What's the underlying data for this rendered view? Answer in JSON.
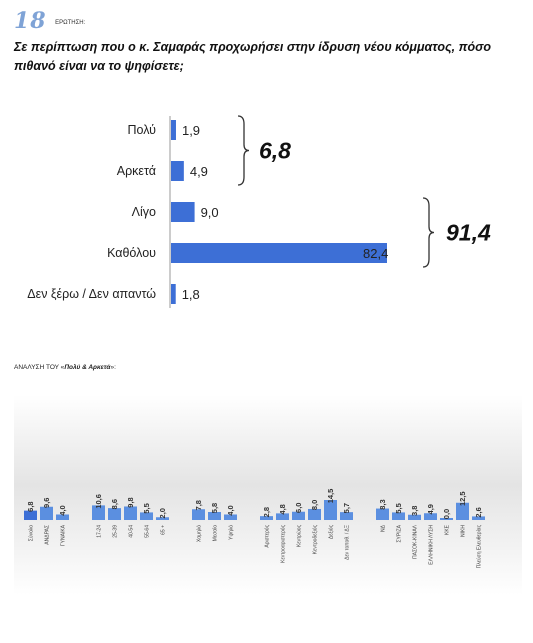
{
  "header": {
    "question_number": "18",
    "question_word": "ΕΡΩΤΗΣΗ:",
    "question_text": "Σε περίπτωση που ο κ. Σαμαράς προχωρήσει στην ίδρυση νέου κόμματος, πόσο πιθανό είναι να το ψηφίσετε;"
  },
  "colors": {
    "bar": "#3d6fd6",
    "bar_light": "#5b8fe0",
    "highlight": "#e02020"
  },
  "chart_data": [
    {
      "type": "bar",
      "orientation": "horizontal",
      "categories": [
        "Πολύ",
        "Αρκετά",
        "Λίγο",
        "Καθόλου",
        "Δεν ξέρω / Δεν απαντώ"
      ],
      "values": [
        1.9,
        4.9,
        9.0,
        82.4,
        1.8
      ],
      "value_labels": [
        "1,9",
        "4,9",
        "9,0",
        "82,4",
        "1,8"
      ],
      "xlim": [
        0,
        82.4
      ],
      "groups": [
        {
          "total": "6,8",
          "categories": [
            "Πολύ",
            "Αρκετά"
          ]
        },
        {
          "total": "91,4",
          "categories": [
            "Λίγο",
            "Καθόλου"
          ]
        }
      ]
    },
    {
      "type": "bar",
      "title_prefix": "ΑΝΑΛΥΣΗ ΤΟΥ «",
      "title_bold": "Πολύ & Αρκετά",
      "title_suffix": "»:",
      "ylim": [
        0,
        14.5
      ],
      "groups": [
        {
          "categories": [
            "Σύνολο",
            "ΑΝΔΡΑΣ",
            "ΓΥΝΑΙΚΑ"
          ],
          "values": [
            6.8,
            9.6,
            4.0
          ],
          "labels": [
            "6,8",
            "9,6",
            "4,0"
          ]
        },
        {
          "categories": [
            "17-24",
            "25-39",
            "40-54",
            "55-64",
            "65 +"
          ],
          "values": [
            10.6,
            8.6,
            9.8,
            5.5,
            2.0
          ],
          "labels": [
            "10,6",
            "8,6",
            "9,8",
            "5,5",
            "2,0"
          ]
        },
        {
          "categories": [
            "Χαμηλό",
            "Μεσαίο",
            "Υψηλό"
          ],
          "values": [
            7.8,
            5.8,
            4.0
          ],
          "labels": [
            "7,8",
            "5,8",
            "4,0"
          ]
        },
        {
          "categories": [
            "Αριστερός",
            "Κεντροαριστερός",
            "Κεντρώος",
            "Κεντροδεξιός",
            "Δεξιός",
            "Δεν τοποθ. / ΔΞ"
          ],
          "values": [
            2.8,
            4.8,
            6.0,
            8.0,
            14.5,
            5.7
          ],
          "labels": [
            "2,8",
            "4,8",
            "6,0",
            "8,0",
            "14,5",
            "5,7"
          ]
        },
        {
          "categories": [
            "ΝΔ",
            "ΣΥΡΙΖΑ",
            "ΠΑΣΟΚ-ΚΙΝΑΛ",
            "ΕΛΛΗΝΙΚΗ ΛΥΣΗ",
            "ΚΚΕ",
            "ΝΙΚΗ",
            "Πλεύση Ελευθερίας"
          ],
          "values": [
            8.3,
            5.5,
            3.8,
            4.9,
            0.0,
            12.5,
            2.6
          ],
          "labels": [
            "8,3",
            "5,5",
            "3,8",
            "4,9",
            "0,0",
            "12,5",
            "2,6"
          ]
        }
      ]
    }
  ]
}
